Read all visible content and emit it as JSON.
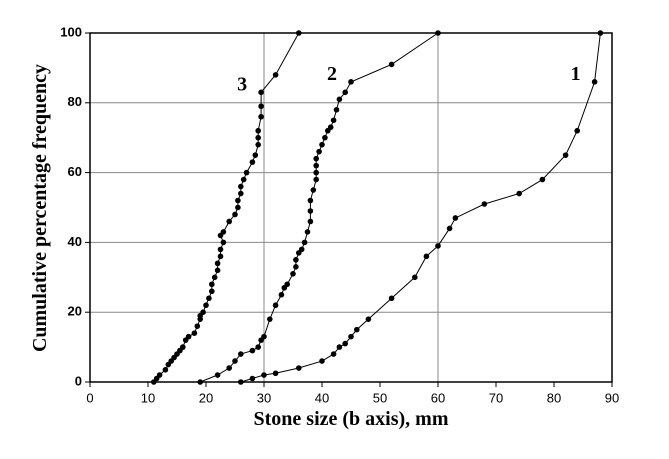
{
  "chart_data": {
    "type": "line",
    "x_label": "Stone size (b axis), mm",
    "y_label": "Cumulative percentage frequency",
    "xlim": [
      0,
      90
    ],
    "xticks": [
      0,
      10,
      20,
      30,
      40,
      50,
      60,
      70,
      80,
      90
    ],
    "ylim": [
      0,
      100
    ],
    "yticks": [
      0,
      20,
      40,
      60,
      80,
      100
    ],
    "grid_x": [
      30,
      60
    ],
    "grid": true,
    "series": [
      {
        "name": "1",
        "color": "#000000",
        "x": [
          26,
          28,
          30,
          32,
          36,
          40,
          42,
          43,
          44,
          45,
          46,
          48,
          52,
          56,
          58,
          60,
          62,
          63,
          68,
          74,
          78,
          82,
          84,
          87,
          88
        ],
        "values": [
          0,
          1,
          2,
          2.5,
          4,
          6,
          8,
          10,
          11,
          13,
          15,
          18,
          24,
          30,
          36,
          39,
          44,
          47,
          51,
          54,
          58,
          65,
          72,
          86,
          100
        ]
      },
      {
        "name": "2",
        "color": "#000000",
        "x": [
          19,
          22,
          24,
          25,
          26,
          28,
          29,
          29.5,
          30,
          31,
          32,
          33,
          33.5,
          34,
          35,
          35.5,
          35.5,
          36,
          36.5,
          37,
          37.5,
          38,
          38,
          38,
          38.5,
          39,
          39,
          39,
          39,
          39.5,
          40,
          40.5,
          41,
          41.5,
          42,
          42.5,
          43,
          44,
          45,
          52,
          60
        ],
        "values": [
          0,
          2,
          4,
          6,
          8,
          9,
          10,
          12,
          13,
          18,
          22,
          25,
          27,
          28,
          31,
          33,
          35,
          37,
          38,
          40,
          43,
          46,
          49,
          52,
          55,
          58,
          60,
          62,
          64,
          66,
          68,
          70,
          72,
          73,
          75,
          78,
          81,
          83,
          86,
          91,
          100
        ]
      },
      {
        "name": "3",
        "color": "#000000",
        "x": [
          11,
          11.5,
          12,
          13,
          13.5,
          14,
          14.5,
          15,
          15.5,
          16,
          16.5,
          17,
          18,
          18.5,
          19,
          19,
          19.5,
          20,
          20.5,
          21,
          21,
          21.5,
          22,
          22,
          22.5,
          22.5,
          23,
          22.5,
          23,
          24,
          25,
          25.5,
          25.5,
          26,
          26,
          26.5,
          27,
          28,
          28.5,
          29,
          29,
          29,
          29.5,
          29.5,
          29.5,
          32,
          36
        ],
        "values": [
          0,
          1,
          2,
          3.5,
          5,
          6,
          7,
          8,
          9,
          10,
          12,
          13,
          14,
          16,
          18,
          19,
          20,
          22,
          24,
          26,
          28,
          30,
          32,
          34,
          36,
          38,
          40,
          42,
          43,
          46,
          48,
          50,
          52,
          54,
          56,
          58,
          60,
          63,
          65,
          68,
          70,
          72,
          76,
          79,
          83,
          88,
          100
        ]
      }
    ]
  }
}
